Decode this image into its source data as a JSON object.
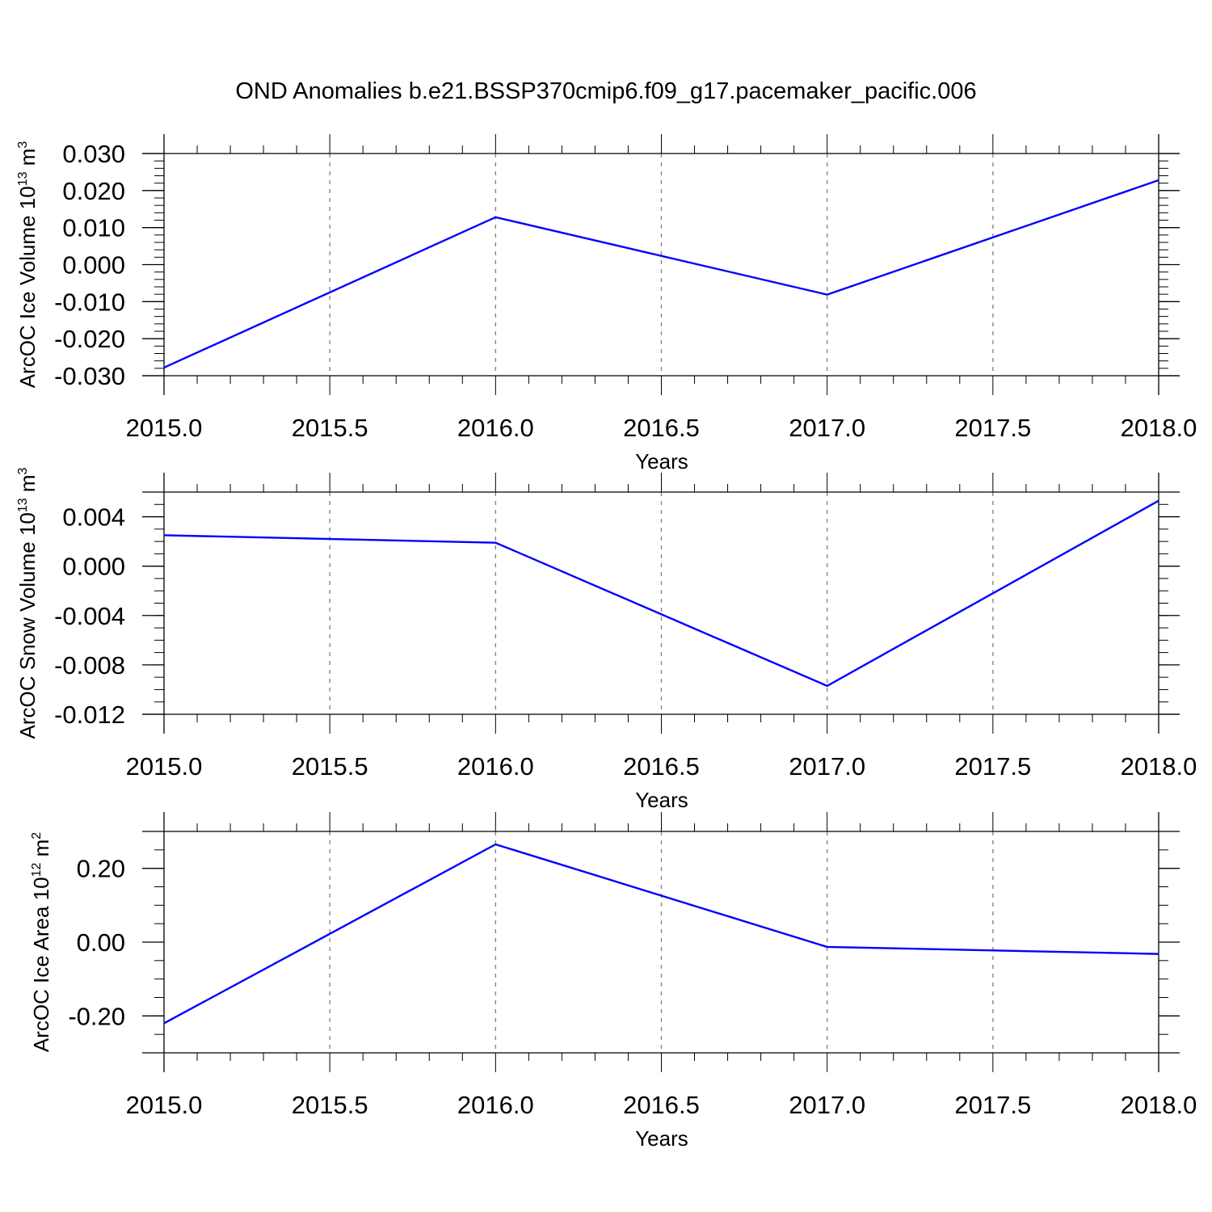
{
  "figure": {
    "title": "OND Anomalies b.e21.BSSP370cmip6.f09_g17.pacemaker_pacific.006"
  },
  "chart_data": [
    {
      "type": "line",
      "xlabel": "Years",
      "ylabel_main": "ArcOC Ice Volume 10",
      "ylabel_exp": "13",
      "ylabel_unit": " m",
      "ylabel_unit_exp": "3",
      "xlim": [
        2015.0,
        2018.0
      ],
      "ylim": [
        -0.03,
        0.03
      ],
      "x_ticks": [
        "2015.0",
        "2015.5",
        "2016.0",
        "2016.5",
        "2017.0",
        "2017.5",
        "2018.0"
      ],
      "y_ticks": [
        "0.030",
        "0.020",
        "0.010",
        "0.000",
        "-0.010",
        "-0.020",
        "-0.030"
      ],
      "grid": "dashed vertical at major x ticks",
      "line_color": "#0000ff",
      "x": [
        2015,
        2016,
        2017,
        2018
      ],
      "y": [
        -0.0278,
        0.0128,
        -0.0081,
        0.0228
      ]
    },
    {
      "type": "line",
      "xlabel": "Years",
      "ylabel_main": "ArcOC Snow Volume 10",
      "ylabel_exp": "13",
      "ylabel_unit": " m",
      "ylabel_unit_exp": "3",
      "xlim": [
        2015.0,
        2018.0
      ],
      "ylim": [
        -0.012,
        0.006
      ],
      "x_ticks": [
        "2015.0",
        "2015.5",
        "2016.0",
        "2016.5",
        "2017.0",
        "2017.5",
        "2018.0"
      ],
      "y_ticks": [
        "0.004",
        "0.000",
        "-0.004",
        "-0.008",
        "-0.012"
      ],
      "grid": "dashed vertical at major x ticks",
      "line_color": "#0000ff",
      "x": [
        2015,
        2016,
        2017,
        2018
      ],
      "y": [
        0.0025,
        0.0019,
        -0.0097,
        0.0053
      ]
    },
    {
      "type": "line",
      "xlabel": "Years",
      "ylabel_main": "ArcOC Ice Area 10",
      "ylabel_exp": "12",
      "ylabel_unit": " m",
      "ylabel_unit_exp": "2",
      "xlim": [
        2015.0,
        2018.0
      ],
      "ylim": [
        -0.3,
        0.3
      ],
      "x_ticks": [
        "2015.0",
        "2015.5",
        "2016.0",
        "2016.5",
        "2017.0",
        "2017.5",
        "2018.0"
      ],
      "y_ticks": [
        "0.20",
        "0.00",
        "-0.20"
      ],
      "grid": "dashed vertical at major x ticks",
      "line_color": "#0000ff",
      "x": [
        2015,
        2016,
        2017,
        2018
      ],
      "y": [
        -0.22,
        0.265,
        -0.013,
        -0.032
      ]
    }
  ]
}
